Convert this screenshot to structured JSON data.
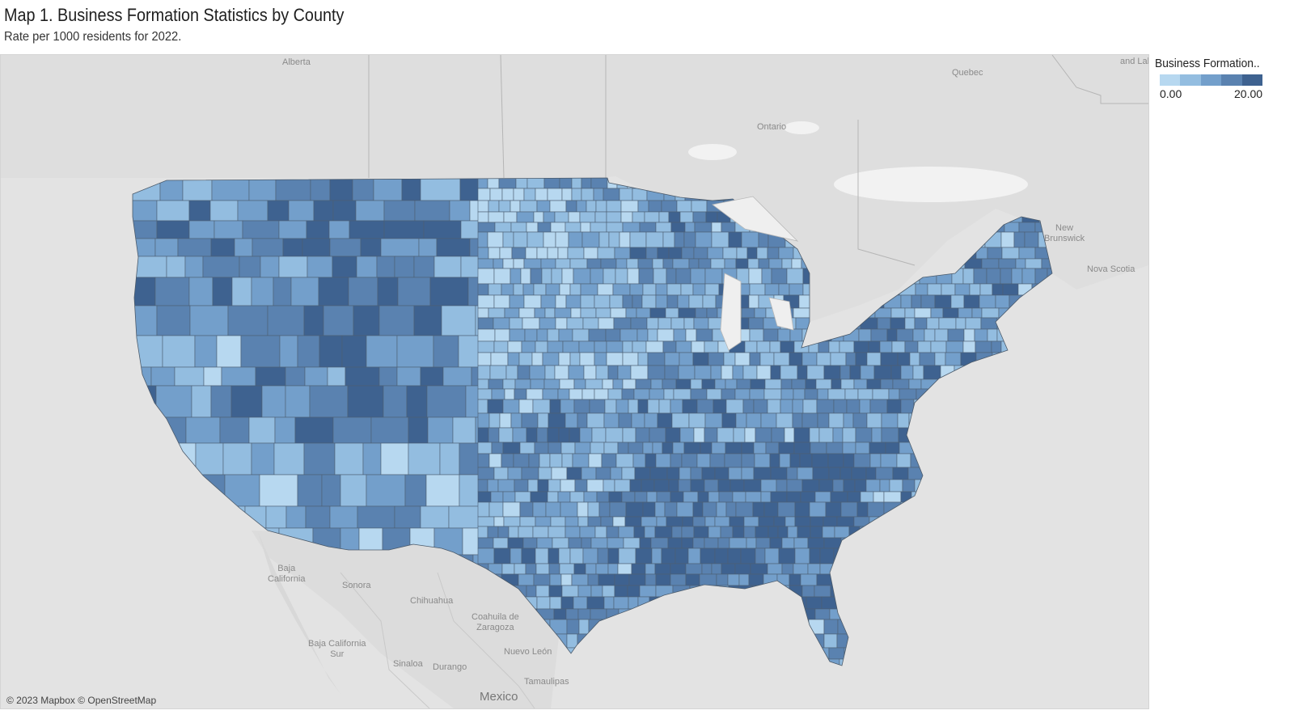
{
  "header": {
    "title": "Map 1. Business Formation Statistics by County",
    "subtitle": "Rate per 1000 residents for 2022."
  },
  "legend": {
    "title": "Business Formation..",
    "min_label": "0.00",
    "max_label": "20.00",
    "colors": [
      "#b7d8f0",
      "#93bde0",
      "#739fcb",
      "#5a82b0",
      "#3e6290"
    ]
  },
  "map": {
    "basemap_colors": {
      "background": "#e3e3e3",
      "land": "#dcdcdc",
      "water": "#f3f3f3",
      "border": "#b5b5b5"
    },
    "place_labels": {
      "alberta": "Alberta",
      "quebec": "Quebec",
      "ontario": "Ontario",
      "and_lab": "and Lab",
      "new_brunswick": "New\nBrunswick",
      "nova_scotia": "Nova Scotia",
      "baja_california": "Baja\nCalifornia",
      "sonora": "Sonora",
      "chihuahua": "Chihuahua",
      "coahuila": "Coahuila de\nZaragoza",
      "baja_california_sur": "Baja California\nSur",
      "nuevo_leon": "Nuevo León",
      "sinaloa": "Sinaloa",
      "durango": "Durango",
      "tamaulipas": "Tamaulipas",
      "mexico": "Mexico"
    },
    "attribution": "© 2023 Mapbox © OpenStreetMap"
  }
}
